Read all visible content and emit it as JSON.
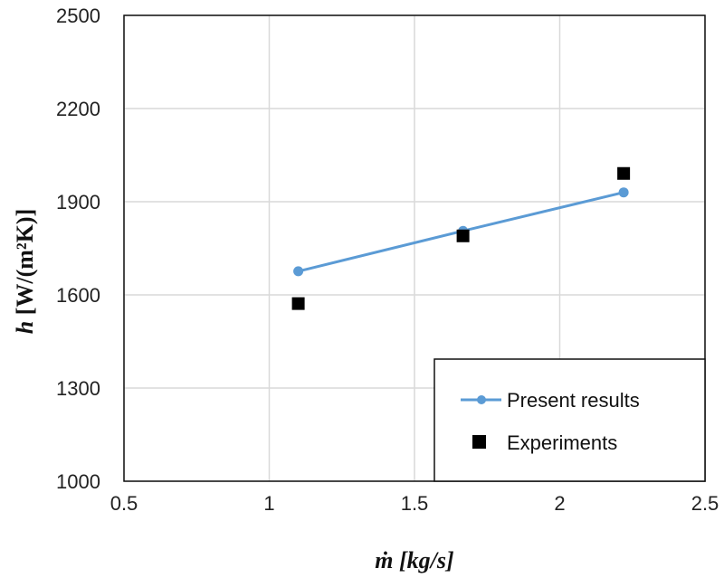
{
  "chart_data": {
    "type": "scatter",
    "title": "",
    "xlabel": "ṁ [kg/s]",
    "xlabel_var": "m",
    "xlabel_unit": "[kg/s]",
    "ylabel_var": "h",
    "ylabel_unit": "[W/(m²K)]",
    "xlim": [
      0.5,
      2.5
    ],
    "ylim": [
      1000,
      2500
    ],
    "xticks": [
      0.5,
      1,
      1.5,
      2,
      2.5
    ],
    "xtick_labels": [
      "0.5",
      "1",
      "1.5",
      "2",
      "2.5"
    ],
    "yticks": [
      1000,
      1300,
      1600,
      1900,
      2200,
      2500
    ],
    "ytick_labels": [
      "1000",
      "1300",
      "1600",
      "1900",
      "2200",
      "2500"
    ],
    "grid": true,
    "legend_position": "bottom-right",
    "series": [
      {
        "name": "Present results",
        "style": "line-marker-circle",
        "color": "#5b9bd5",
        "x": [
          1.1,
          1.667,
          2.22
        ],
        "y": [
          1676,
          1806,
          1930
        ]
      },
      {
        "name": "Experiments",
        "style": "marker-square",
        "color": "#000000",
        "x": [
          1.1,
          1.667,
          2.22
        ],
        "y": [
          1572,
          1790,
          1991
        ]
      }
    ]
  }
}
